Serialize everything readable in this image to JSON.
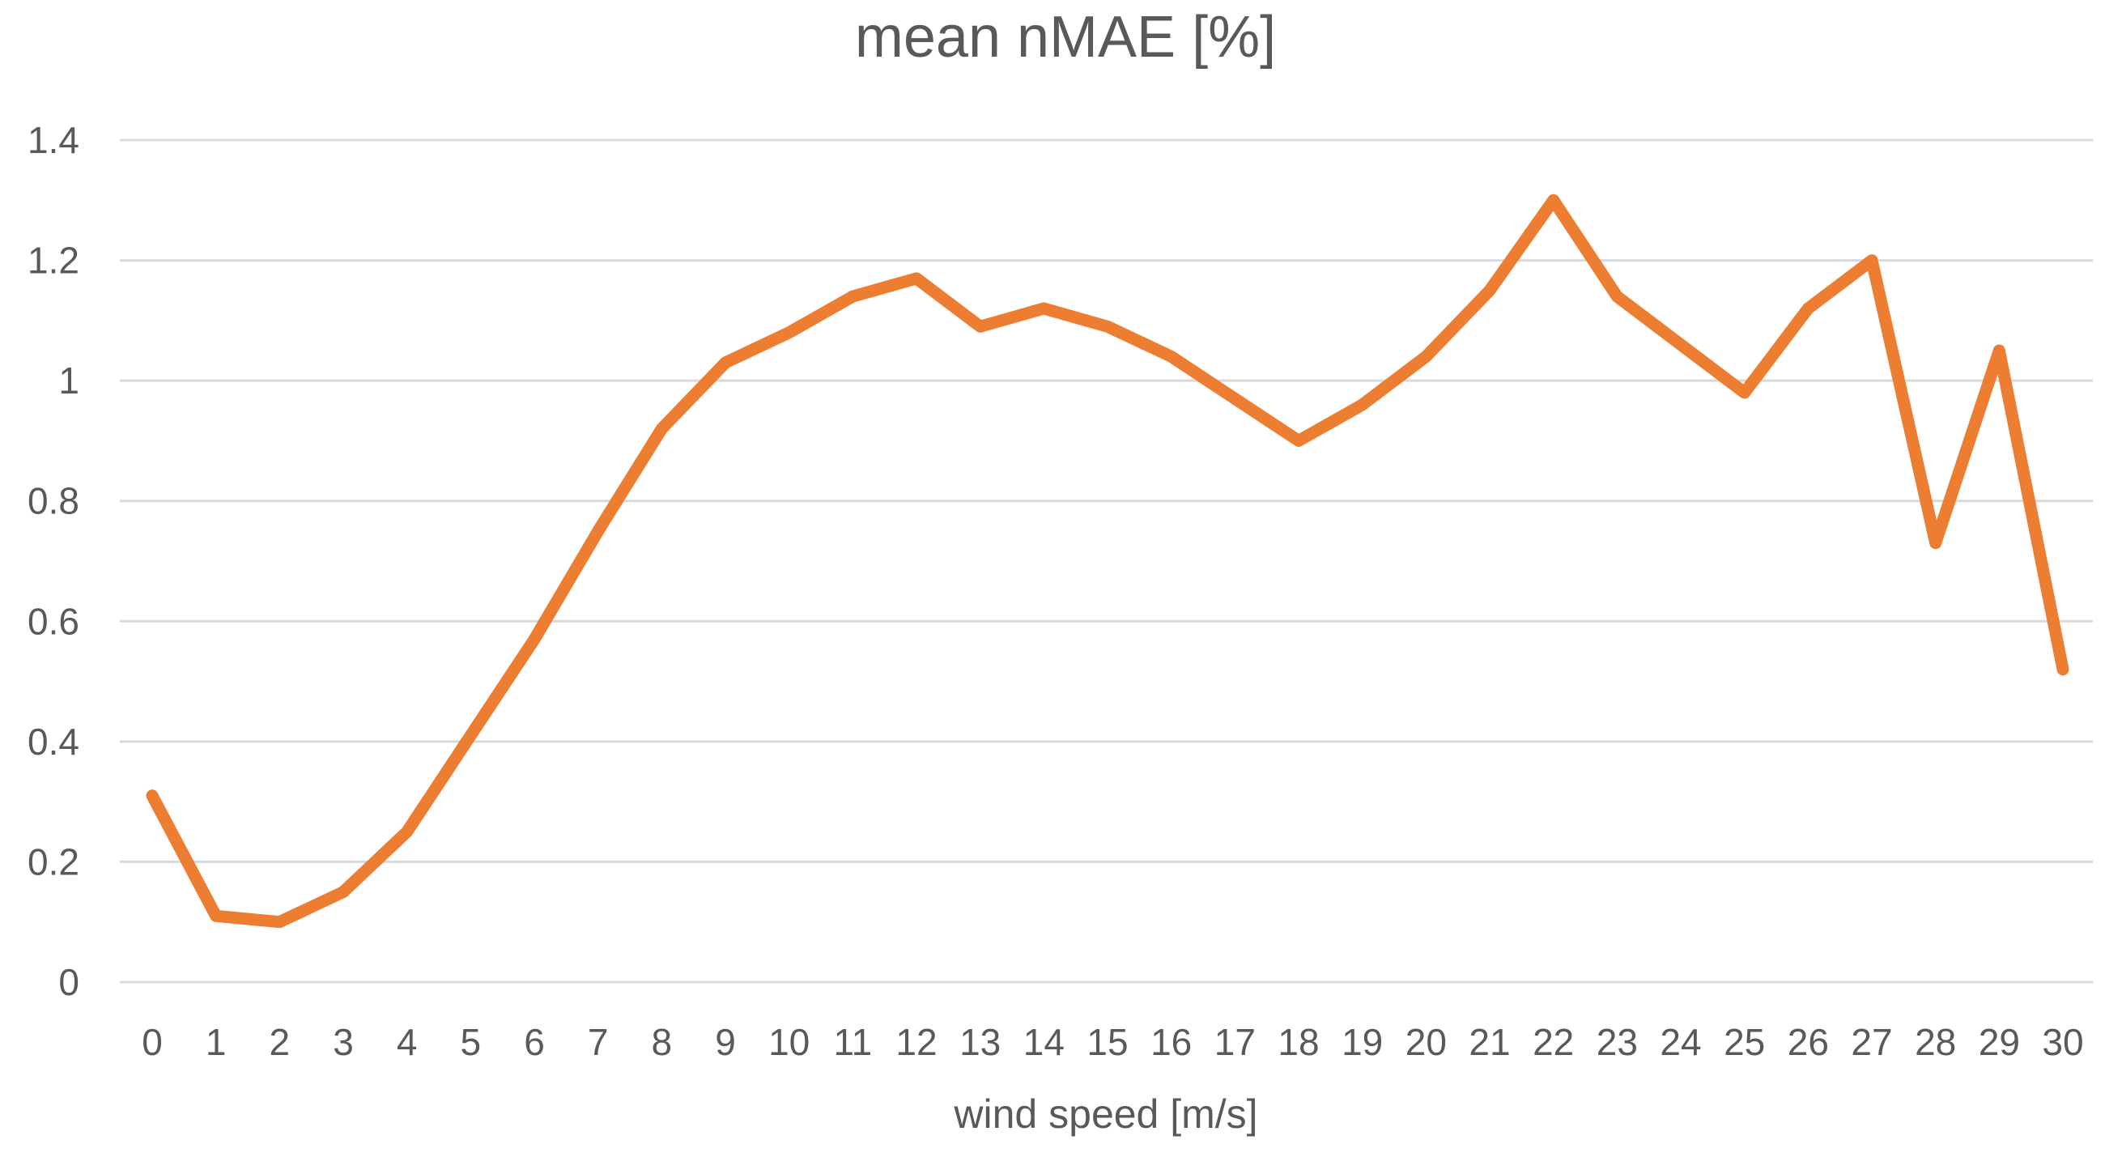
{
  "chart_data": {
    "type": "line",
    "title": "mean nMAE [%]",
    "xlabel": "wind speed [m/s]",
    "ylabel": "",
    "categories": [
      "0",
      "1",
      "2",
      "3",
      "4",
      "5",
      "6",
      "7",
      "8",
      "9",
      "10",
      "11",
      "12",
      "13",
      "14",
      "15",
      "16",
      "17",
      "18",
      "19",
      "20",
      "21",
      "22",
      "23",
      "24",
      "25",
      "26",
      "27",
      "28",
      "29",
      "30"
    ],
    "series": [
      {
        "values": [
          0.31,
          0.11,
          0.1,
          0.15,
          0.25,
          0.41,
          0.57,
          0.75,
          0.92,
          1.03,
          1.08,
          1.14,
          1.17,
          1.09,
          1.12,
          1.09,
          1.04,
          0.97,
          0.9,
          0.96,
          1.04,
          1.15,
          1.3,
          1.14,
          1.06,
          0.98,
          1.12,
          1.2,
          0.73,
          1.05,
          0.52
        ],
        "color": "#ED7D31"
      }
    ],
    "ylim": [
      0,
      1.4
    ],
    "yticks": [
      "0",
      "0.2",
      "0.4",
      "0.6",
      "0.8",
      "1",
      "1.2",
      "1.4"
    ],
    "ytick_values": [
      0,
      0.2,
      0.4,
      0.6,
      0.8,
      1,
      1.2,
      1.4
    ],
    "grid": true,
    "legend": "none"
  }
}
